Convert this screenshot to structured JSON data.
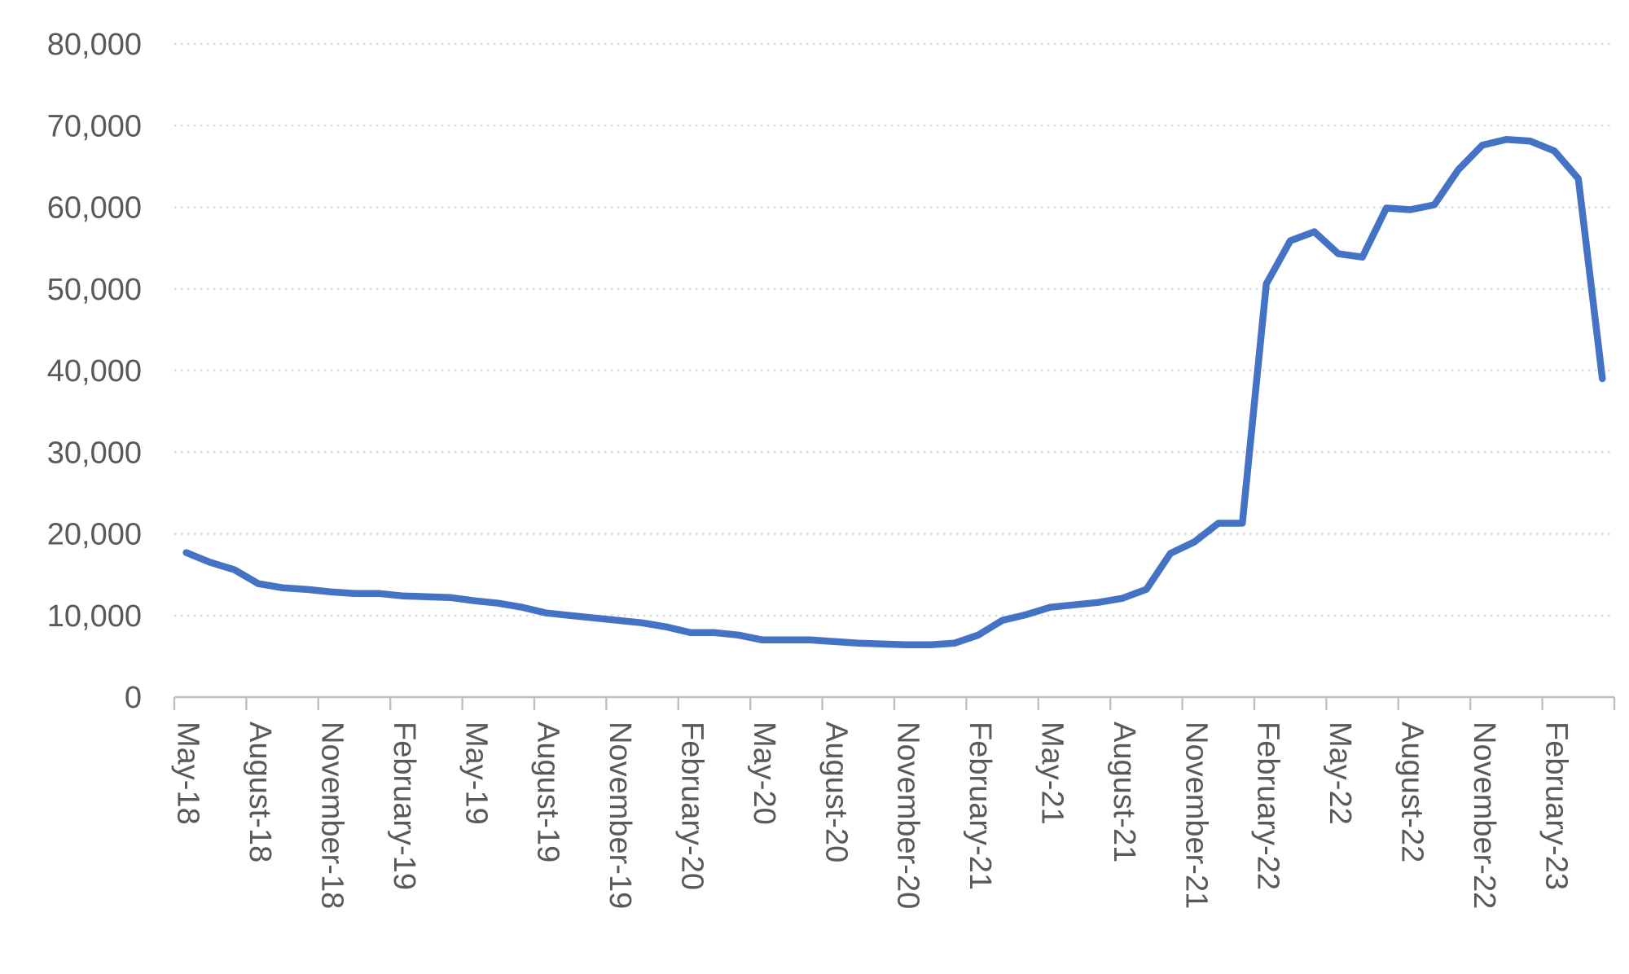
{
  "chart_data": {
    "type": "line",
    "title": "",
    "xlabel": "",
    "ylabel": "",
    "legend": "none",
    "grid": "horizontal-dotted",
    "x_label_rotation_deg": 90,
    "ylim": [
      0,
      80000
    ],
    "y_tick_step": 10000,
    "y_ticks": [
      0,
      10000,
      20000,
      30000,
      40000,
      50000,
      60000,
      70000,
      80000
    ],
    "y_tick_labels": [
      "0",
      "10,000",
      "20,000",
      "30,000",
      "40,000",
      "50,000",
      "60,000",
      "70,000",
      "80,000"
    ],
    "x_tick_interval": 3,
    "visible_x_tick_labels": [
      "May-18",
      "August-18",
      "November-18",
      "February-19",
      "May-19",
      "August-19",
      "November-19",
      "February-20",
      "May-20",
      "August-20",
      "November-20",
      "February-21",
      "May-21",
      "August-21",
      "November-21",
      "February-22",
      "May-22",
      "August-22",
      "November-22",
      "February-23"
    ],
    "x": [
      "May-18",
      "June-18",
      "July-18",
      "August-18",
      "September-18",
      "October-18",
      "November-18",
      "December-18",
      "January-19",
      "February-19",
      "March-19",
      "April-19",
      "May-19",
      "June-19",
      "July-19",
      "August-19",
      "September-19",
      "October-19",
      "November-19",
      "December-19",
      "January-20",
      "February-20",
      "March-20",
      "April-20",
      "May-20",
      "June-20",
      "July-20",
      "August-20",
      "September-20",
      "October-20",
      "November-20",
      "December-20",
      "January-21",
      "February-21",
      "March-21",
      "April-21",
      "May-21",
      "June-21",
      "July-21",
      "August-21",
      "September-21",
      "October-21",
      "November-21",
      "December-21",
      "January-22",
      "February-22",
      "March-22",
      "April-22",
      "May-22",
      "June-22",
      "July-22",
      "August-22",
      "September-22",
      "October-22",
      "November-22",
      "December-22",
      "January-23",
      "February-23",
      "March-23",
      "April-23"
    ],
    "values": [
      17700,
      16500,
      15600,
      13900,
      13400,
      13200,
      12900,
      12700,
      12700,
      12400,
      12300,
      12200,
      11800,
      11500,
      11000,
      10300,
      10000,
      9700,
      9400,
      9100,
      8600,
      7900,
      7900,
      7600,
      7000,
      7000,
      7000,
      6800,
      6600,
      6500,
      6400,
      6400,
      6600,
      7600,
      9400,
      10100,
      11000,
      11300,
      11600,
      12100,
      13200,
      17600,
      19000,
      21300,
      21300,
      50600,
      55900,
      57000,
      54300,
      53900,
      59900,
      59700,
      60300,
      64600,
      67600,
      68300,
      68100,
      66900,
      63500,
      39000
    ],
    "line_color": "#4472C4",
    "label_color": "#595959",
    "gridline_color": "#D9D9D9",
    "axis_line_color": "#BFBFBF",
    "background_color": "#FFFFFF"
  }
}
